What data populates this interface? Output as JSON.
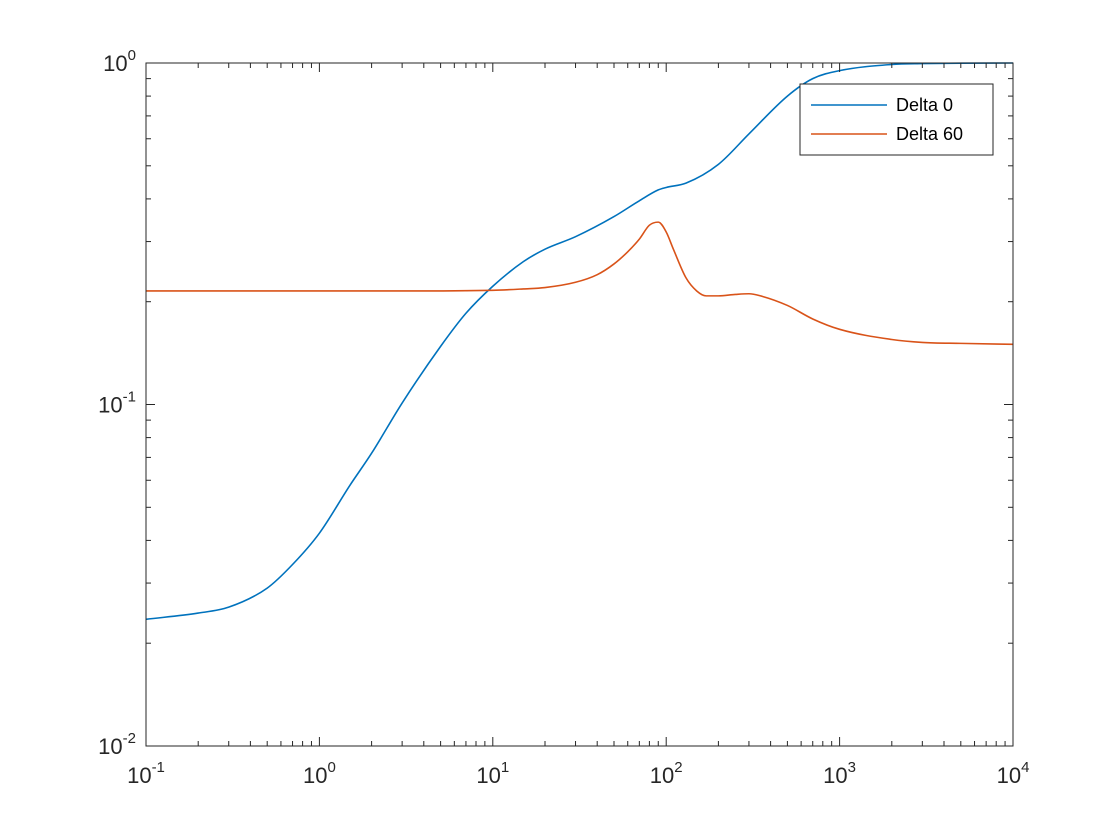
{
  "chart_data": {
    "type": "line",
    "title": "",
    "xlabel": "",
    "ylabel": "",
    "x_scale": "log",
    "y_scale": "log",
    "xlim": [
      0.1,
      10000
    ],
    "ylim": [
      0.01,
      1
    ],
    "grid": false,
    "legend_position": "top-right",
    "x_ticks": [
      {
        "base": "10",
        "exp": "-1",
        "value": 0.1
      },
      {
        "base": "10",
        "exp": "0",
        "value": 1
      },
      {
        "base": "10",
        "exp": "1",
        "value": 10
      },
      {
        "base": "10",
        "exp": "2",
        "value": 100
      },
      {
        "base": "10",
        "exp": "3",
        "value": 1000
      },
      {
        "base": "10",
        "exp": "4",
        "value": 10000
      }
    ],
    "y_ticks": [
      {
        "base": "10",
        "exp": "-2",
        "value": 0.01
      },
      {
        "base": "10",
        "exp": "-1",
        "value": 0.1
      },
      {
        "base": "10",
        "exp": "0",
        "value": 1
      }
    ],
    "series": [
      {
        "name": "Delta 0",
        "color": "#0072BD",
        "x": [
          0.1,
          0.2,
          0.3,
          0.5,
          0.7,
          1,
          1.5,
          2,
          3,
          5,
          7,
          10,
          15,
          20,
          30,
          50,
          70,
          90,
          100,
          130,
          200,
          300,
          500,
          700,
          1000,
          2000,
          3000,
          5000,
          10000
        ],
        "y": [
          0.0235,
          0.0245,
          0.0255,
          0.029,
          0.034,
          0.042,
          0.058,
          0.072,
          0.101,
          0.148,
          0.185,
          0.222,
          0.262,
          0.285,
          0.31,
          0.355,
          0.395,
          0.425,
          0.432,
          0.445,
          0.505,
          0.62,
          0.8,
          0.9,
          0.95,
          0.99,
          0.996,
          0.999,
          1.0
        ]
      },
      {
        "name": "Delta 60",
        "color": "#D95319",
        "x": [
          0.1,
          0.3,
          1,
          3,
          10,
          15,
          20,
          30,
          40,
          50,
          60,
          70,
          80,
          90,
          100,
          110,
          130,
          150,
          170,
          200,
          250,
          300,
          350,
          500,
          700,
          1000,
          2000,
          3000,
          5000,
          10000
        ],
        "y": [
          0.215,
          0.215,
          0.215,
          0.215,
          0.216,
          0.218,
          0.22,
          0.228,
          0.24,
          0.258,
          0.28,
          0.305,
          0.335,
          0.342,
          0.32,
          0.285,
          0.235,
          0.215,
          0.208,
          0.208,
          0.21,
          0.211,
          0.208,
          0.195,
          0.178,
          0.166,
          0.155,
          0.152,
          0.151,
          0.15
        ]
      }
    ]
  }
}
